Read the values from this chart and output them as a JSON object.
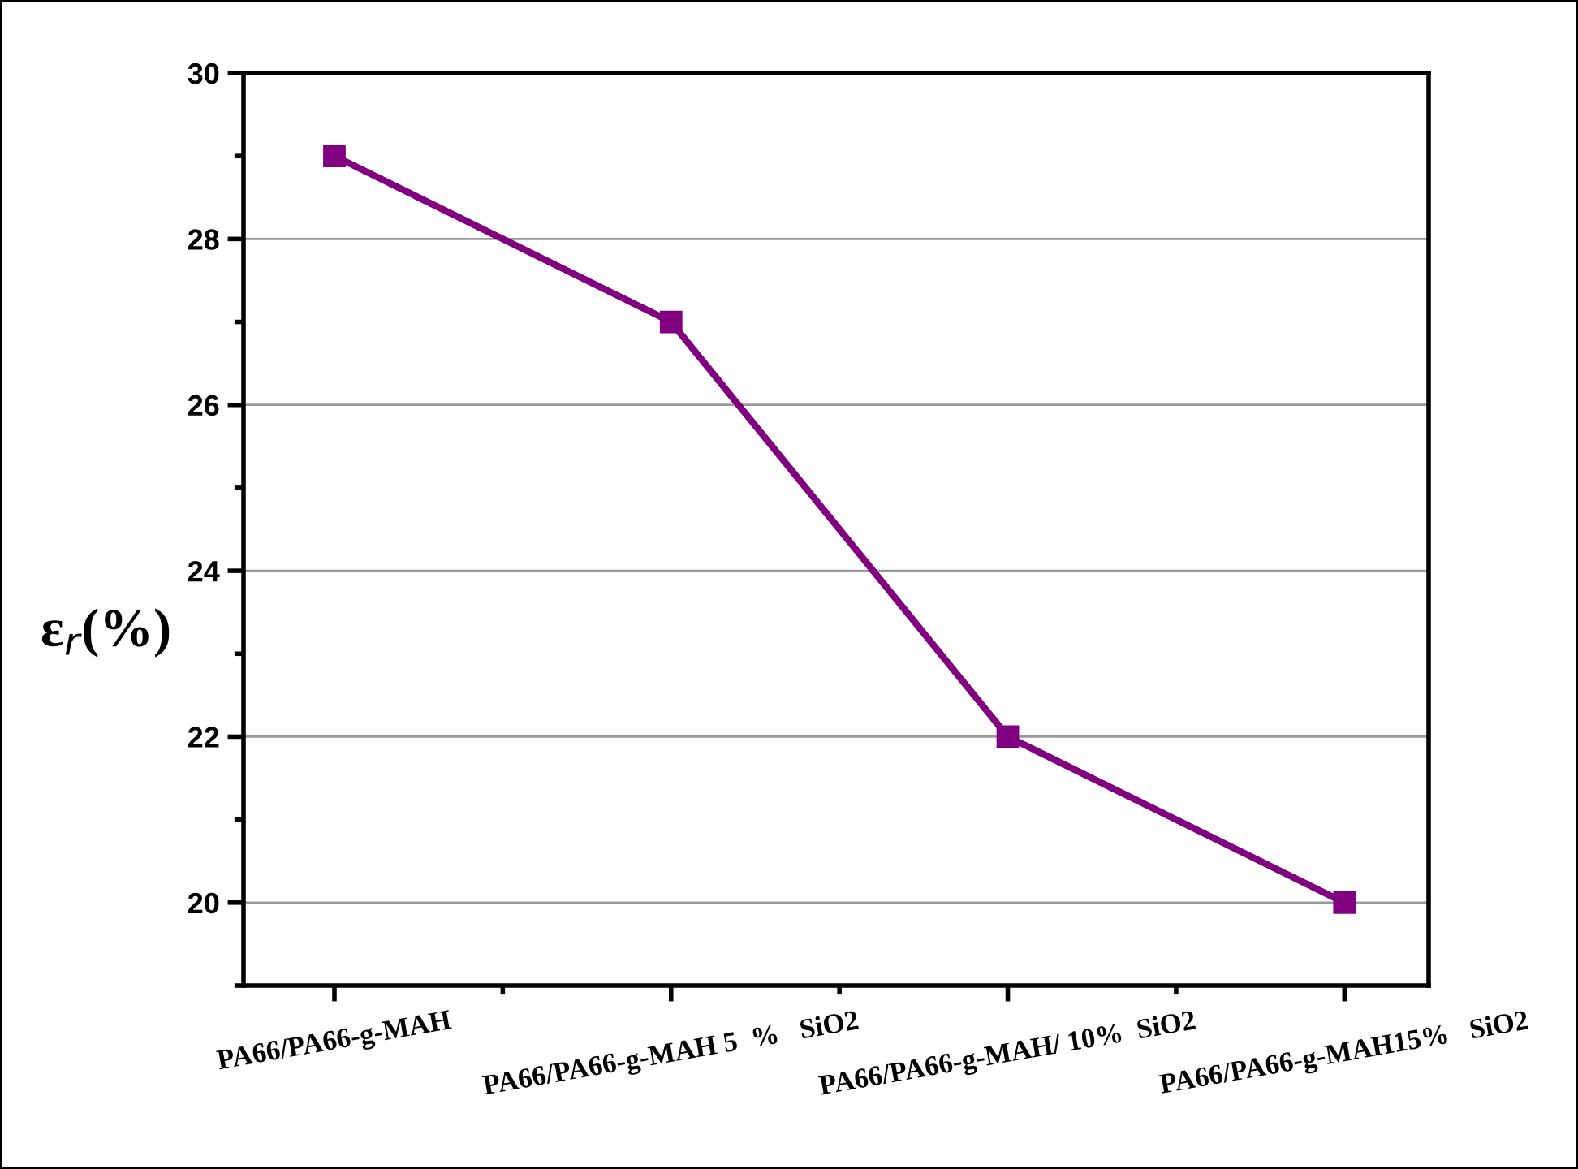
{
  "chart_data": {
    "type": "line",
    "ylabel": "ε$_{r}$(%)",
    "categories": [
      "PA66/PA66-g-MAH",
      "PA66/PA66-g-MAH 5  %   SiO2",
      "PA66/PA66-g-MAH/ 10%  SiO2",
      "PA66/PA66-g-MAH15%   SiO2"
    ],
    "series": [
      {
        "color": "#800080",
        "values": [
          29,
          27,
          22,
          20
        ]
      }
    ],
    "ylim": [
      19,
      30
    ],
    "yticks": [
      20,
      22,
      24,
      26,
      28,
      30
    ],
    "grid": "y",
    "marker": "square",
    "line_style": "solid",
    "legend": false
  }
}
